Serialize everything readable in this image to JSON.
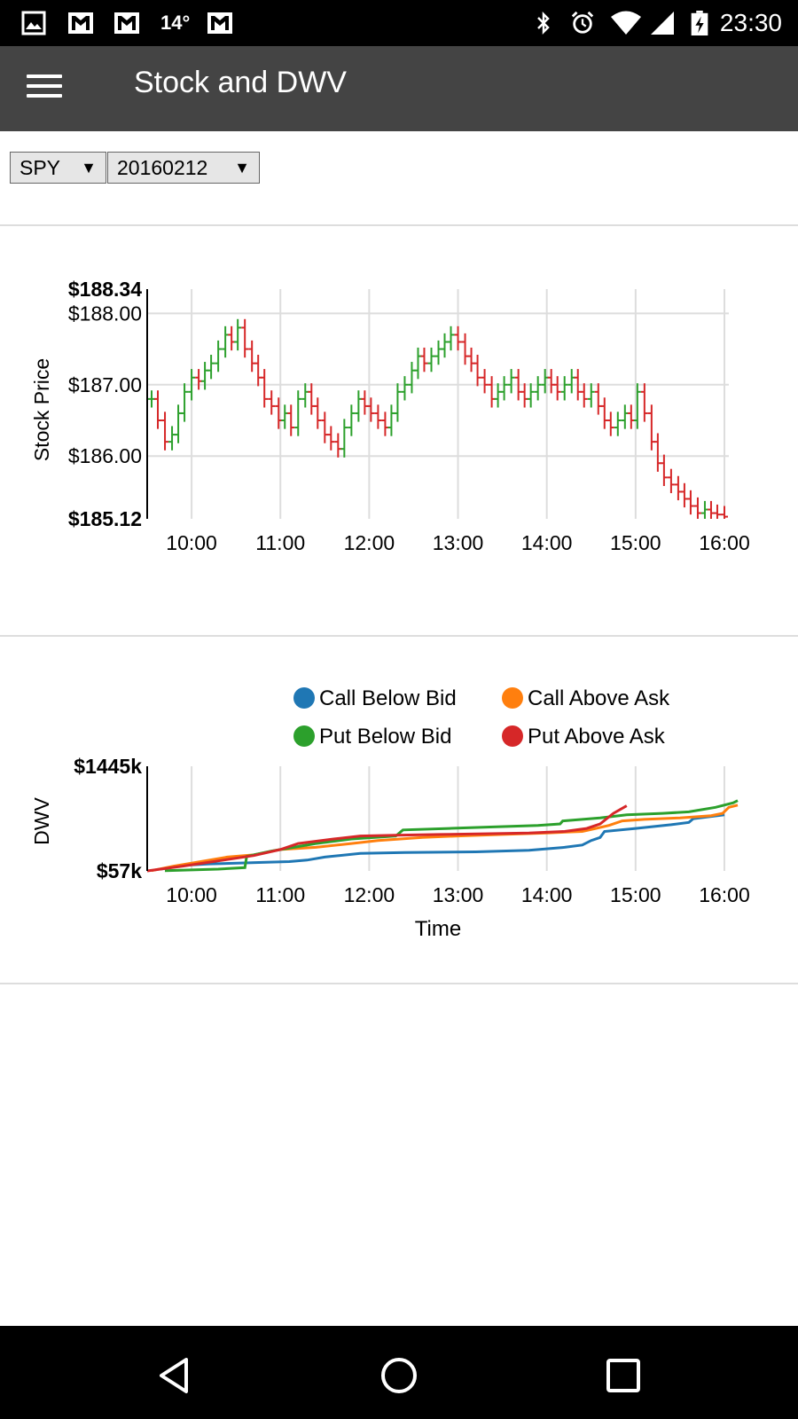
{
  "status_bar": {
    "time": "23:30",
    "temperature": "14°",
    "left_icons": [
      "image-icon",
      "gmail-icon",
      "gmail-icon",
      "gmail-icon"
    ],
    "right_icons": [
      "bluetooth-icon",
      "alarm-icon",
      "wifi-icon",
      "signal-icon",
      "battery-charging-icon"
    ]
  },
  "app_bar": {
    "title": "Stock and DWV"
  },
  "controls": {
    "symbol": "SPY",
    "date": "20160212"
  },
  "colors": {
    "call_below_bid": "#1f77b4",
    "call_above_ask": "#ff7f0e",
    "put_below_bid": "#2ca02c",
    "put_above_ask": "#d62728",
    "up_bar": "#2ca02c",
    "down_bar": "#d62728"
  },
  "chart_data": [
    {
      "type": "ohlc",
      "ylabel": "Stock Price",
      "ylim": [
        185.12,
        188.34
      ],
      "y_extremes": [
        "$188.34",
        "$185.12"
      ],
      "y_ticks": [
        "$188.00",
        "$187.00",
        "$186.00"
      ],
      "y_tick_values": [
        188,
        187,
        186
      ],
      "x_ticks": [
        "10:00",
        "11:00",
        "12:00",
        "13:00",
        "14:00",
        "15:00",
        "16:00"
      ],
      "x_range_hours": [
        9.5,
        16.05
      ],
      "grid": true,
      "close_series": [
        [
          9.55,
          186.8
        ],
        [
          9.62,
          186.5
        ],
        [
          9.7,
          186.2
        ],
        [
          9.78,
          186.3
        ],
        [
          9.85,
          186.6
        ],
        [
          9.92,
          186.9
        ],
        [
          10.0,
          187.1
        ],
        [
          10.08,
          187.05
        ],
        [
          10.15,
          187.2
        ],
        [
          10.22,
          187.3
        ],
        [
          10.3,
          187.5
        ],
        [
          10.38,
          187.7
        ],
        [
          10.45,
          187.6
        ],
        [
          10.52,
          187.8
        ],
        [
          10.6,
          187.5
        ],
        [
          10.68,
          187.3
        ],
        [
          10.75,
          187.1
        ],
        [
          10.82,
          186.8
        ],
        [
          10.9,
          186.7
        ],
        [
          10.98,
          186.5
        ],
        [
          11.05,
          186.6
        ],
        [
          11.12,
          186.4
        ],
        [
          11.2,
          186.8
        ],
        [
          11.28,
          186.9
        ],
        [
          11.35,
          186.7
        ],
        [
          11.42,
          186.5
        ],
        [
          11.5,
          186.3
        ],
        [
          11.57,
          186.2
        ],
        [
          11.65,
          186.1
        ],
        [
          11.72,
          186.4
        ],
        [
          11.8,
          186.6
        ],
        [
          11.88,
          186.8
        ],
        [
          11.95,
          186.7
        ],
        [
          12.02,
          186.6
        ],
        [
          12.1,
          186.5
        ],
        [
          12.18,
          186.4
        ],
        [
          12.25,
          186.6
        ],
        [
          12.32,
          186.9
        ],
        [
          12.4,
          187.0
        ],
        [
          12.48,
          187.2
        ],
        [
          12.55,
          187.4
        ],
        [
          12.62,
          187.3
        ],
        [
          12.7,
          187.4
        ],
        [
          12.78,
          187.5
        ],
        [
          12.85,
          187.6
        ],
        [
          12.92,
          187.7
        ],
        [
          13.0,
          187.6
        ],
        [
          13.08,
          187.4
        ],
        [
          13.15,
          187.3
        ],
        [
          13.22,
          187.1
        ],
        [
          13.3,
          187.0
        ],
        [
          13.38,
          186.8
        ],
        [
          13.45,
          186.9
        ],
        [
          13.52,
          187.0
        ],
        [
          13.6,
          187.1
        ],
        [
          13.68,
          186.9
        ],
        [
          13.75,
          186.8
        ],
        [
          13.82,
          186.9
        ],
        [
          13.9,
          187.0
        ],
        [
          13.98,
          187.1
        ],
        [
          14.05,
          187.0
        ],
        [
          14.12,
          186.9
        ],
        [
          14.2,
          187.0
        ],
        [
          14.28,
          187.1
        ],
        [
          14.35,
          186.9
        ],
        [
          14.42,
          186.8
        ],
        [
          14.5,
          186.9
        ],
        [
          14.58,
          186.7
        ],
        [
          14.65,
          186.5
        ],
        [
          14.72,
          186.4
        ],
        [
          14.8,
          186.5
        ],
        [
          14.88,
          186.6
        ],
        [
          14.95,
          186.5
        ],
        [
          15.02,
          186.9
        ],
        [
          15.1,
          186.6
        ],
        [
          15.18,
          186.2
        ],
        [
          15.25,
          185.9
        ],
        [
          15.32,
          185.7
        ],
        [
          15.4,
          185.6
        ],
        [
          15.48,
          185.5
        ],
        [
          15.55,
          185.4
        ],
        [
          15.62,
          185.3
        ],
        [
          15.7,
          185.2
        ],
        [
          15.78,
          185.25
        ],
        [
          15.85,
          185.2
        ],
        [
          15.92,
          185.18
        ],
        [
          16.0,
          185.15
        ]
      ]
    },
    {
      "type": "line",
      "xlabel": "Time",
      "ylabel": "DWV",
      "ylim": [
        57,
        1445
      ],
      "y_extremes": [
        "$1445k",
        "$57k"
      ],
      "x_ticks": [
        "10:00",
        "11:00",
        "12:00",
        "13:00",
        "14:00",
        "15:00",
        "16:00"
      ],
      "x_range_hours": [
        9.5,
        16.15
      ],
      "legend": [
        "Call Below Bid",
        "Call Above Ask",
        "Put Below Bid",
        "Put Above Ask"
      ],
      "legend_position": "top",
      "series": [
        {
          "name": "Call Below Bid",
          "points": [
            [
              9.65,
              80
            ],
            [
              9.9,
              130
            ],
            [
              10.2,
              150
            ],
            [
              10.8,
              170
            ],
            [
              11.1,
              180
            ],
            [
              11.3,
              200
            ],
            [
              11.5,
              240
            ],
            [
              11.9,
              290
            ],
            [
              12.4,
              300
            ],
            [
              13.2,
              310
            ],
            [
              13.8,
              330
            ],
            [
              14.2,
              370
            ],
            [
              14.4,
              400
            ],
            [
              14.5,
              460
            ],
            [
              14.6,
              500
            ],
            [
              14.65,
              580
            ],
            [
              15.0,
              620
            ],
            [
              15.4,
              670
            ],
            [
              15.6,
              700
            ],
            [
              15.65,
              750
            ],
            [
              16.0,
              800
            ]
          ]
        },
        {
          "name": "Call Above Ask",
          "points": [
            [
              9.55,
              60
            ],
            [
              9.8,
              120
            ],
            [
              10.0,
              160
            ],
            [
              10.4,
              240
            ],
            [
              10.7,
              270
            ],
            [
              11.0,
              340
            ],
            [
              11.4,
              370
            ],
            [
              11.8,
              420
            ],
            [
              12.1,
              460
            ],
            [
              12.6,
              500
            ],
            [
              13.0,
              520
            ],
            [
              13.5,
              540
            ],
            [
              14.0,
              560
            ],
            [
              14.4,
              580
            ],
            [
              14.55,
              620
            ],
            [
              14.7,
              660
            ],
            [
              14.85,
              720
            ],
            [
              15.1,
              740
            ],
            [
              15.5,
              760
            ],
            [
              15.85,
              790
            ],
            [
              15.98,
              820
            ],
            [
              16.05,
              900
            ],
            [
              16.15,
              930
            ]
          ]
        },
        {
          "name": "Put Below Bid",
          "points": [
            [
              9.7,
              60
            ],
            [
              10.3,
              80
            ],
            [
              10.6,
              100
            ],
            [
              10.62,
              250
            ],
            [
              10.9,
              320
            ],
            [
              11.4,
              420
            ],
            [
              11.8,
              480
            ],
            [
              12.3,
              520
            ],
            [
              12.38,
              600
            ],
            [
              12.9,
              620
            ],
            [
              13.4,
              640
            ],
            [
              13.9,
              660
            ],
            [
              14.15,
              680
            ],
            [
              14.18,
              720
            ],
            [
              14.6,
              760
            ],
            [
              14.9,
              800
            ],
            [
              15.3,
              820
            ],
            [
              15.6,
              840
            ],
            [
              15.9,
              900
            ],
            [
              16.1,
              960
            ],
            [
              16.15,
              990
            ]
          ]
        },
        {
          "name": "Put Above Ask",
          "points": [
            [
              9.5,
              57
            ],
            [
              9.9,
              120
            ],
            [
              10.3,
              190
            ],
            [
              10.7,
              260
            ],
            [
              11.0,
              340
            ],
            [
              11.2,
              420
            ],
            [
              11.6,
              480
            ],
            [
              11.9,
              520
            ],
            [
              12.3,
              530
            ],
            [
              12.8,
              540
            ],
            [
              13.3,
              550
            ],
            [
              13.8,
              560
            ],
            [
              14.2,
              580
            ],
            [
              14.45,
              620
            ],
            [
              14.6,
              680
            ],
            [
              14.75,
              820
            ],
            [
              14.9,
              920
            ]
          ]
        }
      ]
    }
  ]
}
